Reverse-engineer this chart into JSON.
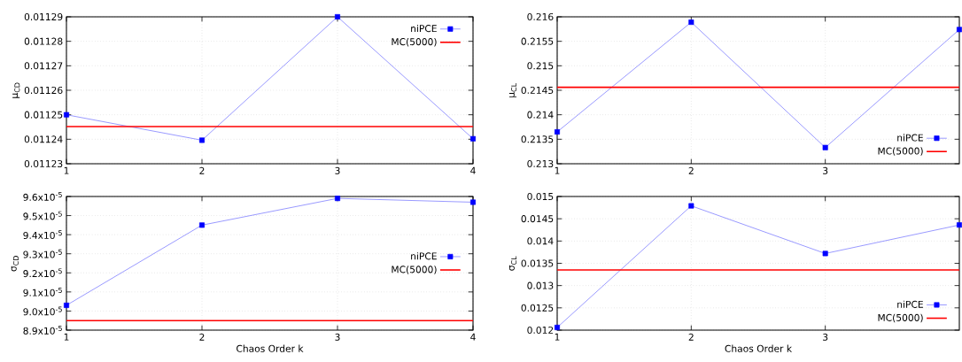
{
  "chart_data": [
    {
      "type": "line",
      "ylabel": "μ$_{CD}$",
      "x": [
        1,
        2,
        3,
        4
      ],
      "xlim": [
        1,
        4
      ],
      "xticks": [
        1,
        2,
        3,
        4
      ],
      "ylim": [
        0.01123,
        0.01129
      ],
      "yticks": [
        0.01123,
        0.01124,
        0.01125,
        0.01126,
        0.01127,
        0.01128,
        0.01129
      ],
      "grid": true,
      "legend": "top right",
      "marker": "square",
      "line_style": "solid",
      "series": [
        {
          "name": "niPCE",
          "color": "#0000ff",
          "values": [
            0.01125,
            0.0112396,
            0.01129,
            0.0112402
          ]
        }
      ],
      "ref_lines": [
        {
          "axis": "y",
          "value": 0.0112452,
          "label": "MC(5000)",
          "color": "#ff0000"
        }
      ]
    },
    {
      "type": "line",
      "ylabel": "μ$_{CL}$",
      "x": [
        1,
        2,
        3,
        4
      ],
      "xlim": [
        1,
        4
      ],
      "xticks": [
        1,
        2,
        3
      ],
      "ylim": [
        0.213,
        0.216
      ],
      "yticks": [
        0.213,
        0.2135,
        0.214,
        0.2145,
        0.215,
        0.2155,
        0.216
      ],
      "grid": true,
      "legend": "bottom right",
      "marker": "square",
      "line_style": "solid",
      "series": [
        {
          "name": "niPCE",
          "color": "#0000ff",
          "values": [
            0.21365,
            0.21589,
            0.21333,
            0.21574
          ]
        }
      ],
      "ref_lines": [
        {
          "axis": "y",
          "value": 0.21456,
          "label": "MC(5000)",
          "color": "#ff0000"
        }
      ]
    },
    {
      "type": "line",
      "xlabel": "Chaos Order k",
      "ylabel": "σ$_{CD}$",
      "x": [
        1,
        2,
        3,
        4
      ],
      "xlim": [
        1,
        4
      ],
      "xticks": [
        1,
        2,
        3,
        4
      ],
      "ylim": [
        8.9e-05,
        9.6e-05
      ],
      "yticks": [
        {
          "value": 8.9e-05,
          "label": "8.9x10$^{-5}$"
        },
        {
          "value": 9e-05,
          "label": "9.0x10$^{-5}$"
        },
        {
          "value": 9.1e-05,
          "label": "9.1x10$^{-5}$"
        },
        {
          "value": 9.2e-05,
          "label": "9.2x10$^{-5}$"
        },
        {
          "value": 9.3e-05,
          "label": "9.3x10$^{-5}$"
        },
        {
          "value": 9.4e-05,
          "label": "9.4x10$^{-5}$"
        },
        {
          "value": 9.5e-05,
          "label": "9.5x10$^{-5}$"
        },
        {
          "value": 9.6e-05,
          "label": "9.6x10$^{-5}$"
        }
      ],
      "grid": true,
      "legend": "right",
      "marker": "square",
      "line_style": "solid",
      "series": [
        {
          "name": "niPCE",
          "color": "#0000ff",
          "values": [
            9.03e-05,
            9.45e-05,
            9.59e-05,
            9.57e-05
          ]
        }
      ],
      "ref_lines": [
        {
          "axis": "y",
          "value": 8.95e-05,
          "label": "MC(5000)",
          "color": "#ff0000"
        }
      ]
    },
    {
      "type": "line",
      "xlabel": "Chaos Order k",
      "ylabel": "σ$_{CL}$",
      "x": [
        1,
        2,
        3,
        4
      ],
      "xlim": [
        1,
        4
      ],
      "xticks": [
        1,
        2,
        3
      ],
      "ylim": [
        0.012,
        0.015
      ],
      "yticks": [
        0.012,
        0.0125,
        0.013,
        0.0135,
        0.014,
        0.0145,
        0.015
      ],
      "grid": true,
      "legend": "bottom right",
      "marker": "square",
      "line_style": "solid",
      "series": [
        {
          "name": "niPCE",
          "color": "#0000ff",
          "values": [
            0.01206,
            0.01479,
            0.01372,
            0.01436
          ]
        }
      ],
      "ref_lines": [
        {
          "axis": "y",
          "value": 0.01335,
          "label": "MC(5000)",
          "color": "#ff0000"
        }
      ]
    }
  ]
}
